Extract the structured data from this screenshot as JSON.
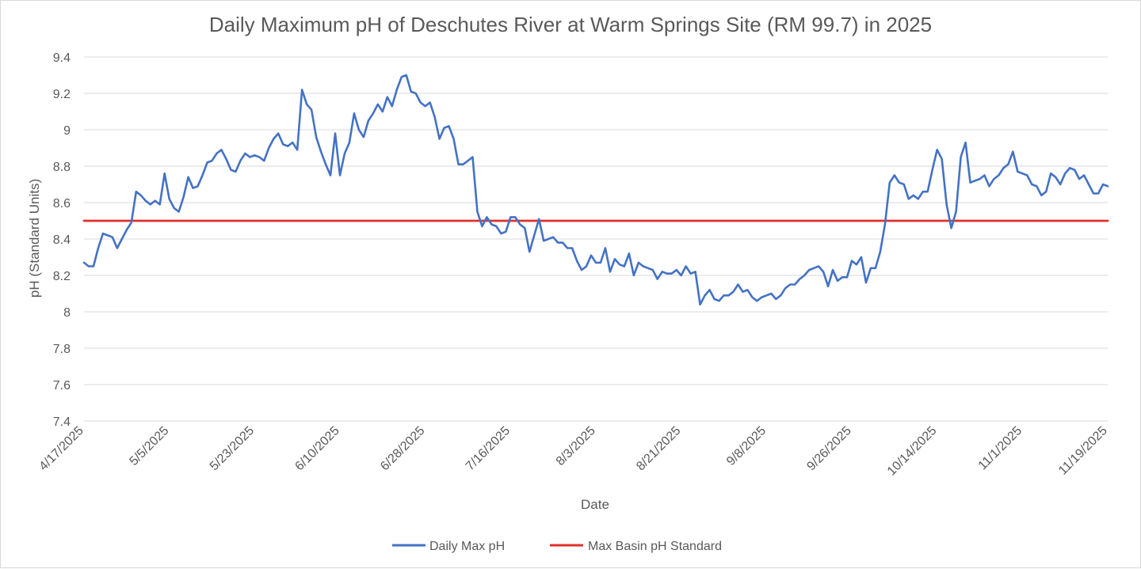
{
  "chart_data": {
    "type": "line",
    "title": "Daily Maximum pH of Deschutes River at Warm Springs Site (RM 99.7) in 2025",
    "xlabel": "Date",
    "ylabel": "pH (Standard Units)",
    "ylim": [
      7.4,
      9.4
    ],
    "y_ticks": [
      "7.4",
      "7.6",
      "7.8",
      "8",
      "8.2",
      "8.4",
      "8.6",
      "8.8",
      "9",
      "9.2",
      "9.4"
    ],
    "x_tick_labels": [
      "4/17/2025",
      "5/5/2025",
      "5/23/2025",
      "6/10/2025",
      "6/28/2025",
      "7/16/2025",
      "8/3/2025",
      "8/21/2025",
      "9/8/2025",
      "9/26/2025",
      "10/14/2025",
      "11/1/2025",
      "11/19/2025"
    ],
    "x_day_range": [
      0,
      216
    ],
    "grid": "horizontal",
    "legend_position": "bottom",
    "series": [
      {
        "name": "Daily Max pH",
        "color": "#4472C4",
        "points": [
          [
            0,
            8.27
          ],
          [
            1,
            8.25
          ],
          [
            2,
            8.25
          ],
          [
            3,
            8.35
          ],
          [
            4,
            8.43
          ],
          [
            5,
            8.42
          ],
          [
            6,
            8.41
          ],
          [
            7,
            8.35
          ],
          [
            8,
            8.4
          ],
          [
            9,
            8.45
          ],
          [
            10,
            8.49
          ],
          [
            11,
            8.66
          ],
          [
            12,
            8.64
          ],
          [
            13,
            8.61
          ],
          [
            14,
            8.59
          ],
          [
            15,
            8.61
          ],
          [
            16,
            8.59
          ],
          [
            17,
            8.76
          ],
          [
            18,
            8.62
          ],
          [
            19,
            8.57
          ],
          [
            20,
            8.55
          ],
          [
            21,
            8.63
          ],
          [
            22,
            8.74
          ],
          [
            23,
            8.68
          ],
          [
            24,
            8.69
          ],
          [
            25,
            8.75
          ],
          [
            26,
            8.82
          ],
          [
            27,
            8.83
          ],
          [
            28,
            8.87
          ],
          [
            29,
            8.89
          ],
          [
            30,
            8.84
          ],
          [
            31,
            8.78
          ],
          [
            32,
            8.77
          ],
          [
            33,
            8.83
          ],
          [
            34,
            8.87
          ],
          [
            35,
            8.85
          ],
          [
            36,
            8.86
          ],
          [
            37,
            8.85
          ],
          [
            38,
            8.83
          ],
          [
            39,
            8.9
          ],
          [
            40,
            8.95
          ],
          [
            41,
            8.98
          ],
          [
            42,
            8.92
          ],
          [
            43,
            8.91
          ],
          [
            44,
            8.93
          ],
          [
            45,
            8.89
          ],
          [
            46,
            9.22
          ],
          [
            47,
            9.14
          ],
          [
            48,
            9.11
          ],
          [
            49,
            8.96
          ],
          [
            50,
            8.88
          ],
          [
            51,
            8.81
          ],
          [
            52,
            8.75
          ],
          [
            53,
            8.98
          ],
          [
            54,
            8.75
          ],
          [
            55,
            8.87
          ],
          [
            56,
            8.93
          ],
          [
            57,
            9.09
          ],
          [
            58,
            9.0
          ],
          [
            59,
            8.96
          ],
          [
            60,
            9.05
          ],
          [
            61,
            9.09
          ],
          [
            62,
            9.14
          ],
          [
            63,
            9.1
          ],
          [
            64,
            9.18
          ],
          [
            65,
            9.13
          ],
          [
            66,
            9.22
          ],
          [
            67,
            9.29
          ],
          [
            68,
            9.3
          ],
          [
            69,
            9.21
          ],
          [
            70,
            9.2
          ],
          [
            71,
            9.15
          ],
          [
            72,
            9.13
          ],
          [
            73,
            9.15
          ],
          [
            74,
            9.07
          ],
          [
            75,
            8.95
          ],
          [
            76,
            9.01
          ],
          [
            77,
            9.02
          ],
          [
            78,
            8.95
          ],
          [
            79,
            8.81
          ],
          [
            80,
            8.81
          ],
          [
            81,
            8.83
          ],
          [
            82,
            8.85
          ],
          [
            83,
            8.55
          ],
          [
            84,
            8.47
          ],
          [
            85,
            8.52
          ],
          [
            86,
            8.48
          ],
          [
            87,
            8.47
          ],
          [
            88,
            8.43
          ],
          [
            89,
            8.44
          ],
          [
            90,
            8.52
          ],
          [
            91,
            8.52
          ],
          [
            92,
            8.48
          ],
          [
            93,
            8.46
          ],
          [
            94,
            8.33
          ],
          [
            95,
            8.42
          ],
          [
            96,
            8.51
          ],
          [
            97,
            8.39
          ],
          [
            98,
            8.4
          ],
          [
            99,
            8.41
          ],
          [
            100,
            8.38
          ],
          [
            101,
            8.38
          ],
          [
            102,
            8.35
          ],
          [
            103,
            8.35
          ],
          [
            104,
            8.28
          ],
          [
            105,
            8.23
          ],
          [
            106,
            8.25
          ],
          [
            107,
            8.31
          ],
          [
            108,
            8.27
          ],
          [
            109,
            8.27
          ],
          [
            110,
            8.35
          ],
          [
            111,
            8.22
          ],
          [
            112,
            8.29
          ],
          [
            113,
            8.26
          ],
          [
            114,
            8.25
          ],
          [
            115,
            8.32
          ],
          [
            116,
            8.2
          ],
          [
            117,
            8.27
          ],
          [
            118,
            8.25
          ],
          [
            119,
            8.24
          ],
          [
            120,
            8.23
          ],
          [
            121,
            8.18
          ],
          [
            122,
            8.22
          ],
          [
            123,
            8.21
          ],
          [
            124,
            8.21
          ],
          [
            125,
            8.23
          ],
          [
            126,
            8.2
          ],
          [
            127,
            8.25
          ],
          [
            128,
            8.21
          ],
          [
            129,
            8.22
          ],
          [
            130,
            8.04
          ],
          [
            131,
            8.09
          ],
          [
            132,
            8.12
          ],
          [
            133,
            8.07
          ],
          [
            134,
            8.06
          ],
          [
            135,
            8.09
          ],
          [
            136,
            8.09
          ],
          [
            137,
            8.11
          ],
          [
            138,
            8.15
          ],
          [
            139,
            8.11
          ],
          [
            140,
            8.12
          ],
          [
            141,
            8.08
          ],
          [
            142,
            8.06
          ],
          [
            143,
            8.08
          ],
          [
            144,
            8.09
          ],
          [
            145,
            8.1
          ],
          [
            146,
            8.07
          ],
          [
            147,
            8.09
          ],
          [
            148,
            8.13
          ],
          [
            149,
            8.15
          ],
          [
            150,
            8.15
          ],
          [
            151,
            8.18
          ],
          [
            152,
            8.2
          ],
          [
            153,
            8.23
          ],
          [
            154,
            8.24
          ],
          [
            155,
            8.25
          ],
          [
            156,
            8.22
          ],
          [
            157,
            8.14
          ],
          [
            158,
            8.23
          ],
          [
            159,
            8.17
          ],
          [
            160,
            8.19
          ],
          [
            161,
            8.19
          ],
          [
            162,
            8.28
          ],
          [
            163,
            8.26
          ],
          [
            164,
            8.3
          ],
          [
            165,
            8.16
          ],
          [
            166,
            8.24
          ],
          [
            167,
            8.24
          ],
          [
            168,
            8.33
          ],
          [
            169,
            8.48
          ],
          [
            170,
            8.71
          ],
          [
            171,
            8.75
          ],
          [
            172,
            8.71
          ],
          [
            173,
            8.7
          ],
          [
            174,
            8.62
          ],
          [
            175,
            8.64
          ],
          [
            176,
            8.62
          ],
          [
            177,
            8.66
          ],
          [
            178,
            8.66
          ],
          [
            179,
            8.78
          ],
          [
            180,
            8.89
          ],
          [
            181,
            8.84
          ],
          [
            182,
            8.59
          ],
          [
            183,
            8.46
          ],
          [
            184,
            8.55
          ],
          [
            185,
            8.85
          ],
          [
            186,
            8.93
          ],
          [
            187,
            8.71
          ],
          [
            188,
            8.72
          ],
          [
            189,
            8.73
          ],
          [
            190,
            8.75
          ],
          [
            191,
            8.69
          ],
          [
            192,
            8.73
          ],
          [
            193,
            8.75
          ],
          [
            194,
            8.79
          ],
          [
            195,
            8.81
          ],
          [
            196,
            8.88
          ],
          [
            197,
            8.77
          ],
          [
            198,
            8.76
          ],
          [
            199,
            8.75
          ],
          [
            200,
            8.7
          ],
          [
            201,
            8.69
          ],
          [
            202,
            8.64
          ],
          [
            203,
            8.66
          ],
          [
            204,
            8.76
          ],
          [
            205,
            8.74
          ],
          [
            206,
            8.7
          ],
          [
            207,
            8.76
          ],
          [
            208,
            8.79
          ],
          [
            209,
            8.78
          ],
          [
            210,
            8.73
          ],
          [
            211,
            8.75
          ],
          [
            212,
            8.7
          ],
          [
            213,
            8.65
          ],
          [
            214,
            8.65
          ],
          [
            215,
            8.7
          ],
          [
            216,
            8.69
          ]
        ]
      },
      {
        "name": "Max Basin pH Standard",
        "color": "#E0302B",
        "points": [
          [
            0,
            8.5
          ],
          [
            216,
            8.5
          ]
        ]
      }
    ]
  }
}
